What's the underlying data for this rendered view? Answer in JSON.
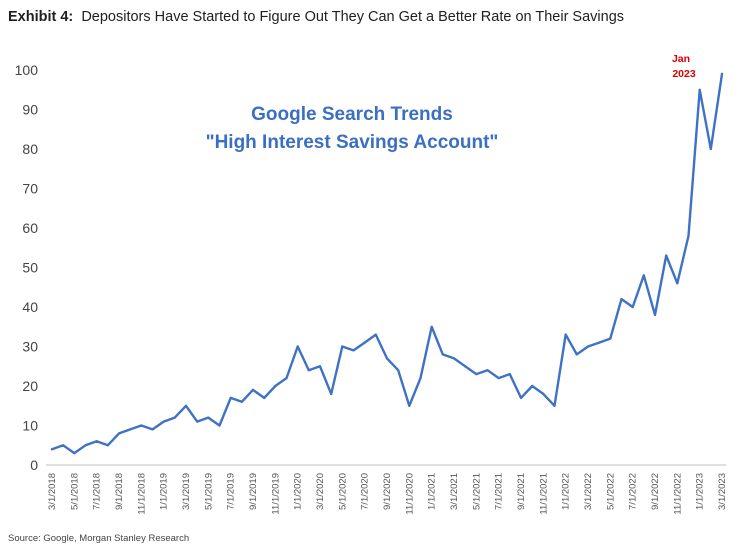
{
  "header": {
    "exhibit_label": "Exhibit 4:",
    "title_text": "Depositors Have Started to Figure Out They Can Get a Better Rate on Their Savings"
  },
  "footer": {
    "source": "Source: Google, Morgan Stanley Research"
  },
  "chart_data": {
    "type": "line",
    "title": "Google Search Trends",
    "subtitle": "\"High Interest Savings Account\"",
    "annotation": {
      "line1": "Jan",
      "line2": "2023"
    },
    "xlabel": "",
    "ylabel": "",
    "ylim": [
      0,
      100
    ],
    "yticks": [
      0,
      10,
      20,
      30,
      40,
      50,
      60,
      70,
      80,
      90,
      100
    ],
    "grid": false,
    "legend": "none",
    "line_color": "#3f72c4",
    "xtick_labels": [
      "3/1/2018",
      "5/1/2018",
      "7/1/2018",
      "9/1/2018",
      "11/1/2018",
      "1/1/2019",
      "3/1/2019",
      "5/1/2019",
      "7/1/2019",
      "9/1/2019",
      "11/1/2019",
      "1/1/2020",
      "3/1/2020",
      "5/1/2020",
      "7/1/2020",
      "9/1/2020",
      "11/1/2020",
      "1/1/2021",
      "3/1/2021",
      "5/1/2021",
      "7/1/2021",
      "9/1/2021",
      "11/1/2021",
      "1/1/2022",
      "3/1/2022",
      "5/1/2022",
      "7/1/2022",
      "9/1/2022",
      "11/1/2022",
      "1/1/2023",
      "3/1/2023"
    ],
    "x": [
      "2018-03",
      "2018-04",
      "2018-05",
      "2018-06",
      "2018-07",
      "2018-08",
      "2018-09",
      "2018-10",
      "2018-11",
      "2018-12",
      "2019-01",
      "2019-02",
      "2019-03",
      "2019-04",
      "2019-05",
      "2019-06",
      "2019-07",
      "2019-08",
      "2019-09",
      "2019-10",
      "2019-11",
      "2019-12",
      "2020-01",
      "2020-02",
      "2020-03",
      "2020-04",
      "2020-05",
      "2020-06",
      "2020-07",
      "2020-08",
      "2020-09",
      "2020-10",
      "2020-11",
      "2020-12",
      "2021-01",
      "2021-02",
      "2021-03",
      "2021-04",
      "2021-05",
      "2021-06",
      "2021-07",
      "2021-08",
      "2021-09",
      "2021-10",
      "2021-11",
      "2021-12",
      "2022-01",
      "2022-02",
      "2022-03",
      "2022-04",
      "2022-05",
      "2022-06",
      "2022-07",
      "2022-08",
      "2022-09",
      "2022-10",
      "2022-11",
      "2022-12",
      "2023-01",
      "2023-02",
      "2023-03"
    ],
    "series": [
      {
        "values": [
          4,
          5,
          3,
          5,
          6,
          5,
          8,
          9,
          10,
          9,
          11,
          12,
          15,
          11,
          12,
          10,
          17,
          16,
          19,
          17,
          20,
          22,
          30,
          24,
          25,
          18,
          30,
          29,
          31,
          33,
          27,
          24,
          15,
          22,
          35,
          28,
          27,
          25,
          23,
          24,
          22,
          23,
          17,
          20,
          18,
          15,
          33,
          28,
          30,
          31,
          32,
          42,
          40,
          48,
          38,
          53,
          46,
          58,
          95,
          80,
          99
        ]
      }
    ]
  }
}
